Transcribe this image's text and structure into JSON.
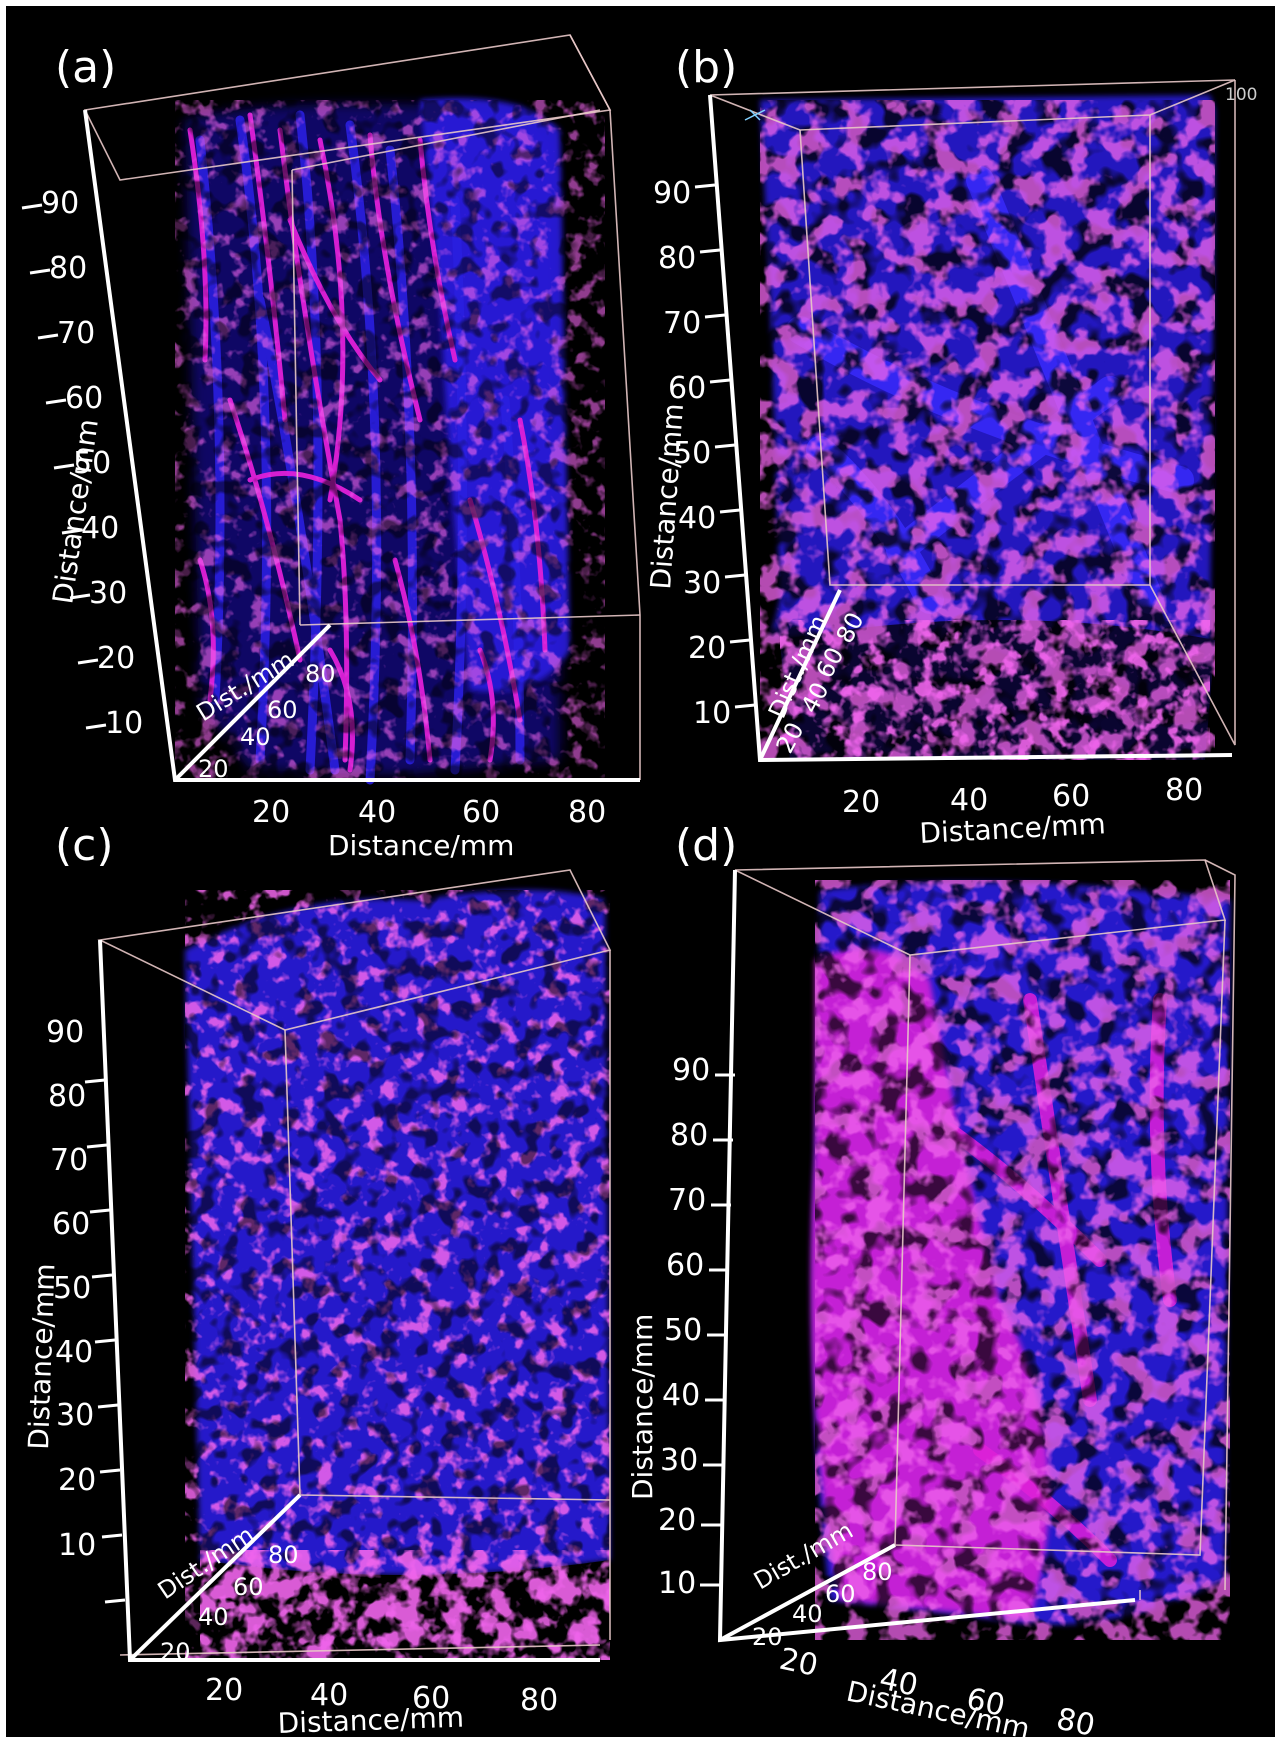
{
  "panels": [
    {
      "label": "(a)",
      "y_ticks": [
        "10",
        "20",
        "30",
        "40",
        "50",
        "60",
        "70",
        "80",
        "90"
      ],
      "y_title": "Distance/mm",
      "depth_ticks": [
        "20",
        "40",
        "60",
        "80"
      ],
      "depth_title": "Dist./mm",
      "x_ticks": [
        "20",
        "40",
        "60",
        "80"
      ],
      "x_title": "Distance/mm"
    },
    {
      "label": "(b)",
      "corner_label": "100",
      "y_ticks": [
        "10",
        "20",
        "30",
        "40",
        "50",
        "60",
        "70",
        "80",
        "90"
      ],
      "y_title": "Distance/mm",
      "depth_ticks": [
        "20",
        "40",
        "60",
        "80"
      ],
      "depth_title": "Dist./mm",
      "x_ticks": [
        "20",
        "40",
        "60",
        "80"
      ],
      "x_title": "Distance/mm"
    },
    {
      "label": "(c)",
      "y_ticks": [
        "10",
        "20",
        "30",
        "40",
        "50",
        "60",
        "70",
        "80",
        "90"
      ],
      "y_title": "Distance/mm",
      "depth_ticks": [
        "20",
        "40",
        "60",
        "80"
      ],
      "depth_title": "Dist./mm",
      "x_ticks": [
        "20",
        "40",
        "60",
        "80"
      ],
      "x_title": "Distance/mm"
    },
    {
      "label": "(d)",
      "y_ticks": [
        "10",
        "20",
        "30",
        "40",
        "50",
        "60",
        "70",
        "80",
        "90"
      ],
      "y_title": "Distance/mm",
      "depth_ticks": [
        "20",
        "40",
        "60",
        "80"
      ],
      "depth_title": "Dist./mm",
      "x_ticks": [
        "20",
        "40",
        "60",
        "80"
      ],
      "x_title": "Distance/mm"
    }
  ],
  "colors": {
    "background": "#000000",
    "matrix": "#2a1fe0",
    "pores": "#e020d8",
    "axes": "#ffffff",
    "box": "#e8c8c8"
  }
}
